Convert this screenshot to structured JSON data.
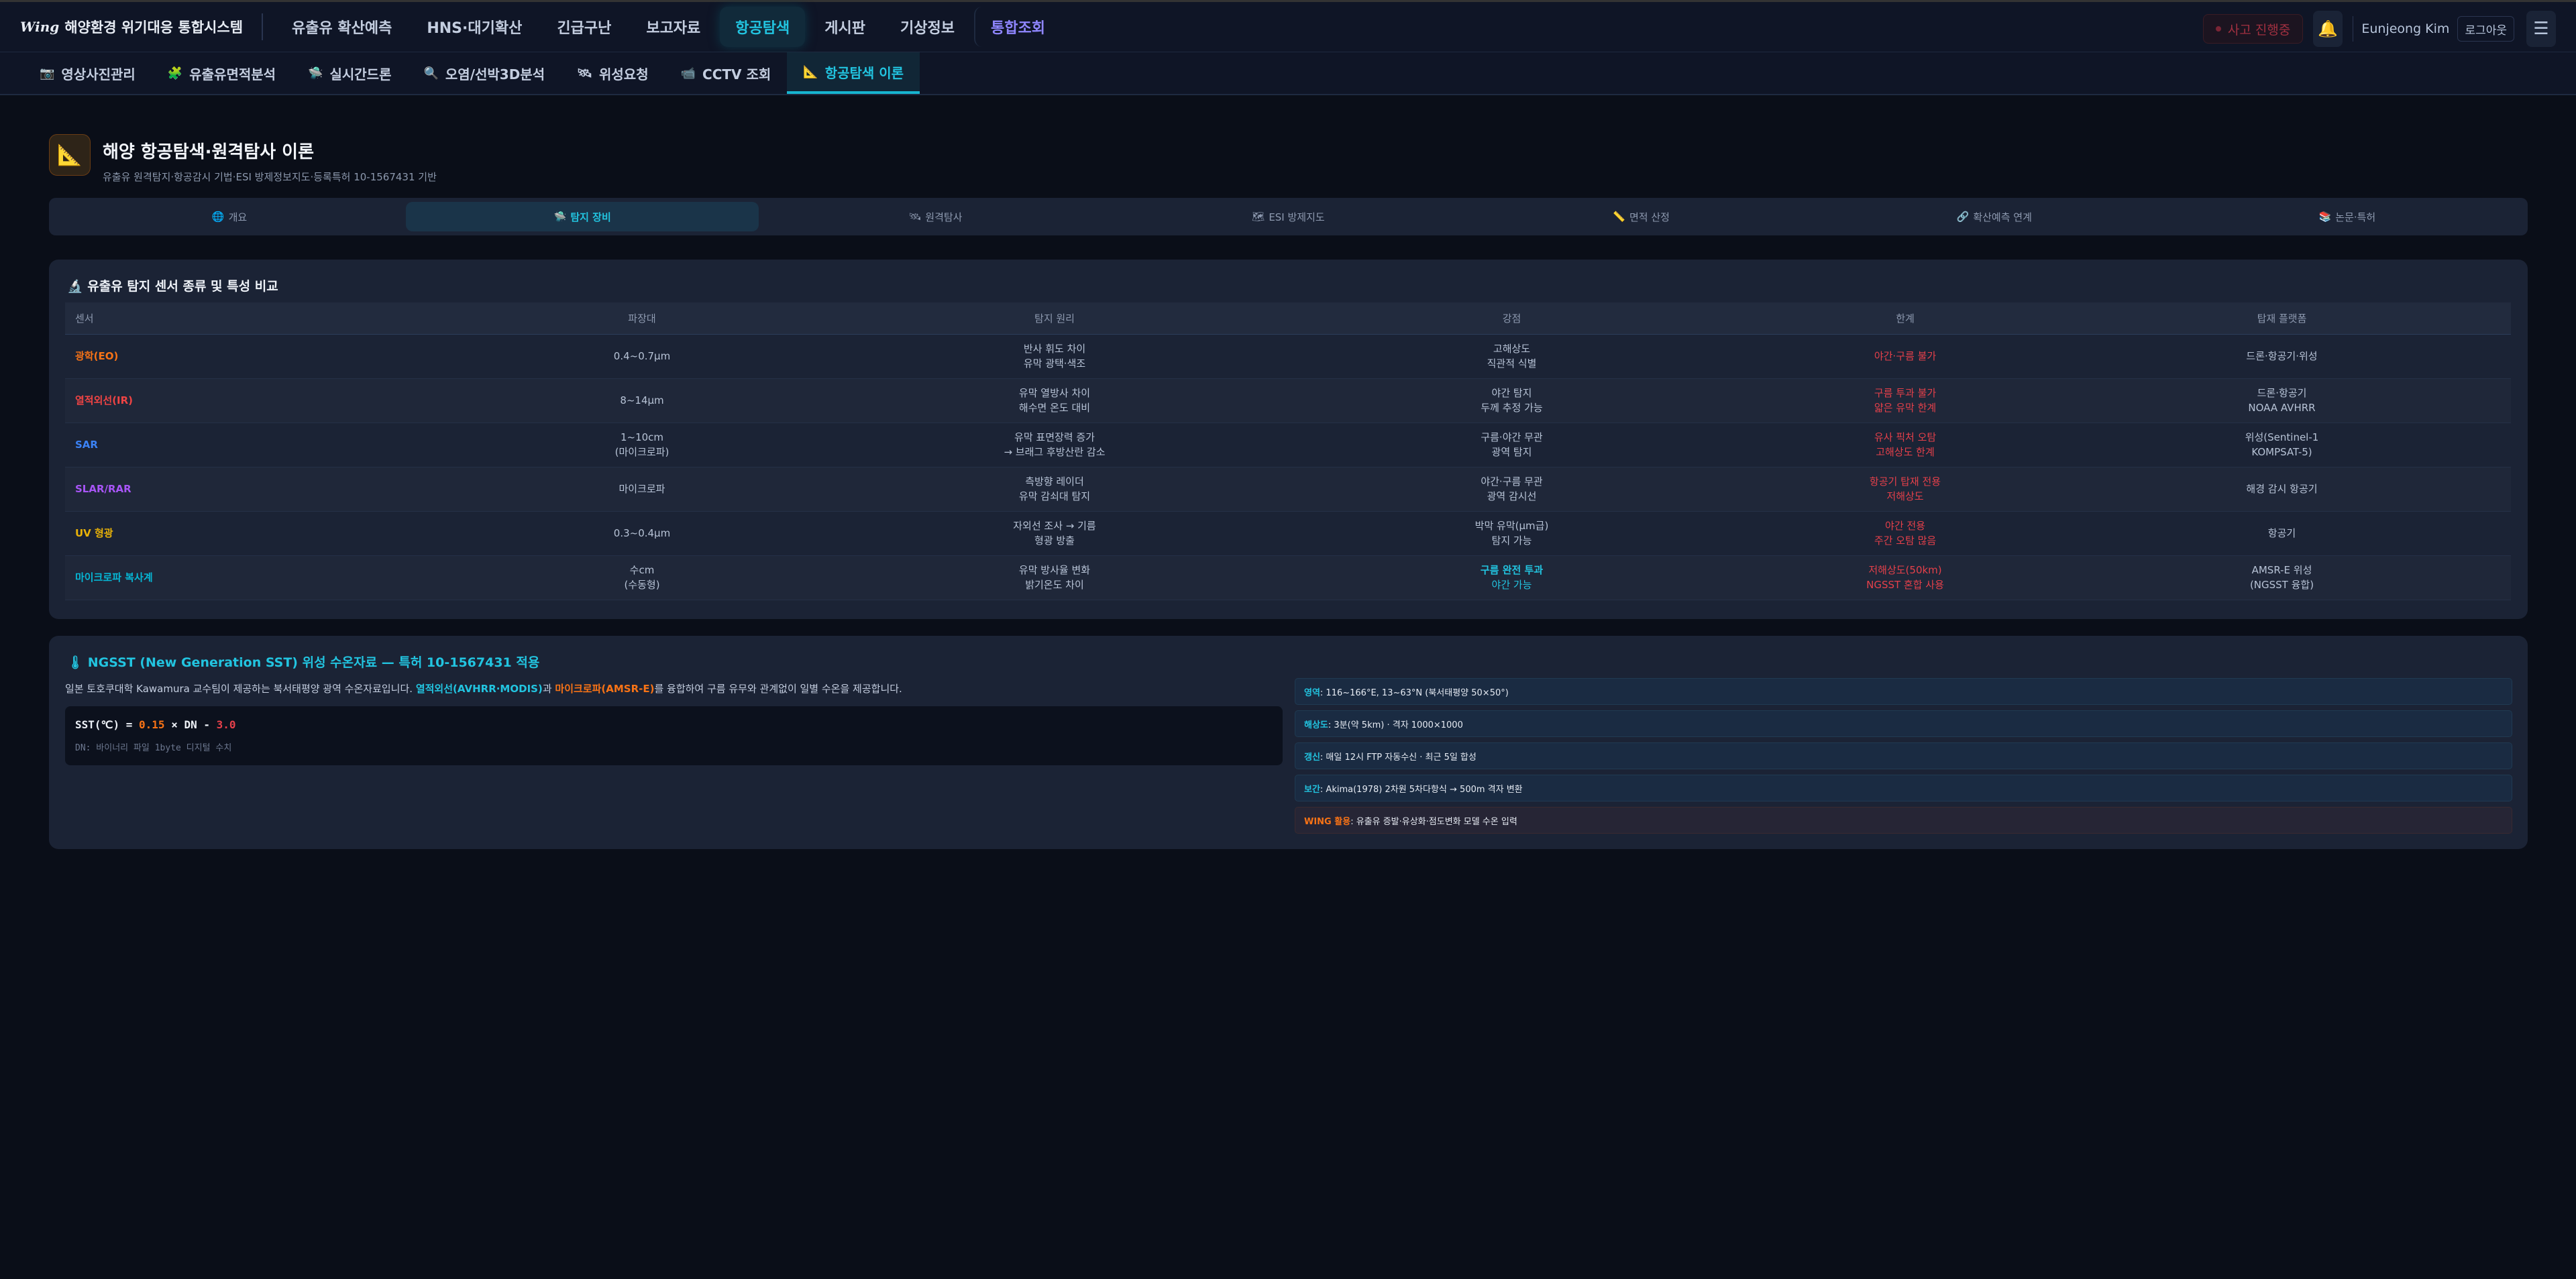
{
  "topbar": {
    "logo_mark": "Wing",
    "title": "해양환경 위기대응 통합시스템",
    "nav": [
      "유출유 확산예측",
      "HNS·대기확산",
      "긴급구난",
      "보고자료",
      "항공탐색",
      "게시판",
      "기상정보",
      "통합조회"
    ],
    "incident": "사고 진행중",
    "user": "Eunjeong Kim",
    "logout": "로그아웃"
  },
  "subnav": [
    {
      "icon": "📷",
      "label": "영상사진관리"
    },
    {
      "icon": "🧩",
      "label": "유출유면적분석"
    },
    {
      "icon": "🛸",
      "label": "실시간드론"
    },
    {
      "icon": "🔍",
      "label": "오염/선박3D분석"
    },
    {
      "icon": "🛰",
      "label": "위성요청"
    },
    {
      "icon": "📹",
      "label": "CCTV 조회"
    },
    {
      "icon": "📐",
      "label": "항공탐색 이론"
    }
  ],
  "header": {
    "icon": "📐",
    "title": "해양 항공탐색·원격탐사 이론",
    "subtitle": "유출유 원격탐지·항공감시 기법·ESI 방제정보지도·등록특허 10-1567431 기반"
  },
  "tabs": [
    {
      "icon": "🌐",
      "label": "개요"
    },
    {
      "icon": "🛸",
      "label": "탐지 장비"
    },
    {
      "icon": "🛰",
      "label": "원격탐사"
    },
    {
      "icon": "🗺",
      "label": "ESI 방제지도"
    },
    {
      "icon": "📏",
      "label": "면적 산정"
    },
    {
      "icon": "🔗",
      "label": "확산예측 연계"
    },
    {
      "icon": "📚",
      "label": "논문·특허"
    }
  ],
  "sensors": {
    "title": "🔬 유출유 탐지 센서 종류 및 특성 비교",
    "columns": [
      "센서",
      "파장대",
      "탐지 원리",
      "강점",
      "한계",
      "탑재 플랫폼"
    ],
    "rows": [
      {
        "name": "광학(EO)",
        "color": "#f97316",
        "band": [
          "0.4~0.7μm"
        ],
        "principle": [
          "반사 휘도 차이",
          "유막 광택·색조"
        ],
        "strength": [
          "고해상도",
          "직관적 식별"
        ],
        "limit": [
          "야간·구름 불가"
        ],
        "platform": [
          "드론·항공기·위성"
        ]
      },
      {
        "name": "열적외선(IR)",
        "color": "#ef4444",
        "band": [
          "8~14μm"
        ],
        "principle": [
          "유막 열방사 차이",
          "해수면 온도 대비"
        ],
        "strength": [
          "야간 탐지",
          "두께 추정 가능"
        ],
        "limit": [
          "구름 투과 불가",
          "얇은 유막 한계"
        ],
        "platform": [
          "드론·항공기",
          "NOAA AVHRR"
        ]
      },
      {
        "name": "SAR",
        "color": "#3b82f6",
        "band": [
          "1~10cm",
          "(마이크로파)"
        ],
        "principle": [
          "유막 표면장력 증가",
          "→ 브래그 후방산란 감소"
        ],
        "strength": [
          "구름·야간 무관",
          "광역 탐지"
        ],
        "limit": [
          "유사 픽처 오탐",
          "고해상도 한계"
        ],
        "platform": [
          "위성(Sentinel-1",
          "KOMPSAT-5)"
        ]
      },
      {
        "name": "SLAR/RAR",
        "color": "#a855f7",
        "band": [
          "마이크로파"
        ],
        "principle": [
          "측방향 레이더",
          "유막 감쇠대 탐지"
        ],
        "strength": [
          "야간·구름 무관",
          "광역 감시선"
        ],
        "limit": [
          "항공기 탑재 전용",
          "저해상도"
        ],
        "platform": [
          "해경 감시 항공기"
        ]
      },
      {
        "name": "UV 형광",
        "color": "#eab308",
        "band": [
          "0.3~0.4μm"
        ],
        "principle": [
          "자외선 조사 → 기름",
          "형광 방출"
        ],
        "strength": [
          "박막 유막(μm급)",
          "탐지 가능"
        ],
        "limit": [
          "야간 전용",
          "주간 오탐 많음"
        ],
        "platform": [
          "항공기"
        ]
      },
      {
        "name": "마이크로파 복사계",
        "color": "#06b6d4",
        "band": [
          "수cm",
          "(수동형)"
        ],
        "principle": [
          "유막 방사율 변화",
          "밝기온도 차이"
        ],
        "strength": [
          "구름 완전 투과",
          "야간 가능"
        ],
        "strength_highlight": true,
        "limit": [
          "저해상도(50km)",
          "NGSST 혼합 사용"
        ],
        "platform": [
          "AMSR-E 위성",
          "(NGSST 융합)"
        ]
      }
    ]
  },
  "ngsst": {
    "title": "🌡 NGSST (New Generation SST) 위성 수온자료 — 특허 10-1567431 적용",
    "desc_pre": "일본 토호쿠대학 Kawamura 교수팀이 제공하는 북서태평양 광역 수온자료입니다. ",
    "desc_ir": "열적외선(AVHRR·MODIS)",
    "desc_mid": "과 ",
    "desc_mw": "마이크로파(AMSR-E)",
    "desc_post": "를 융합하여 구름 유무와 관계없이 일별 수온을 제공합니다.",
    "formula": {
      "lhs": "SST(℃) = ",
      "a": "0.15",
      "mid": " × DN - ",
      "b": "3.0"
    },
    "dn_note": "DN: 바이너리 파일 1byte 디지털 수치",
    "info": [
      {
        "key": "영역",
        "value": " : 116~166°E, 13~63°N (북서태평양 50×50°)"
      },
      {
        "key": "해상도",
        "value": " : 3분(약 5km) · 격자 1000×1000"
      },
      {
        "key": "갱신",
        "value": " : 매일 12시 FTP 자동수신 · 최근 5일 합성"
      },
      {
        "key": "보간",
        "value": " : Akima(1978) 2차원 5차다항식 → 500m 격자 변환"
      },
      {
        "key": "WING 활용",
        "value": " : 유출유 증발·유상화·점도변화 모델 수온 입력"
      }
    ]
  }
}
